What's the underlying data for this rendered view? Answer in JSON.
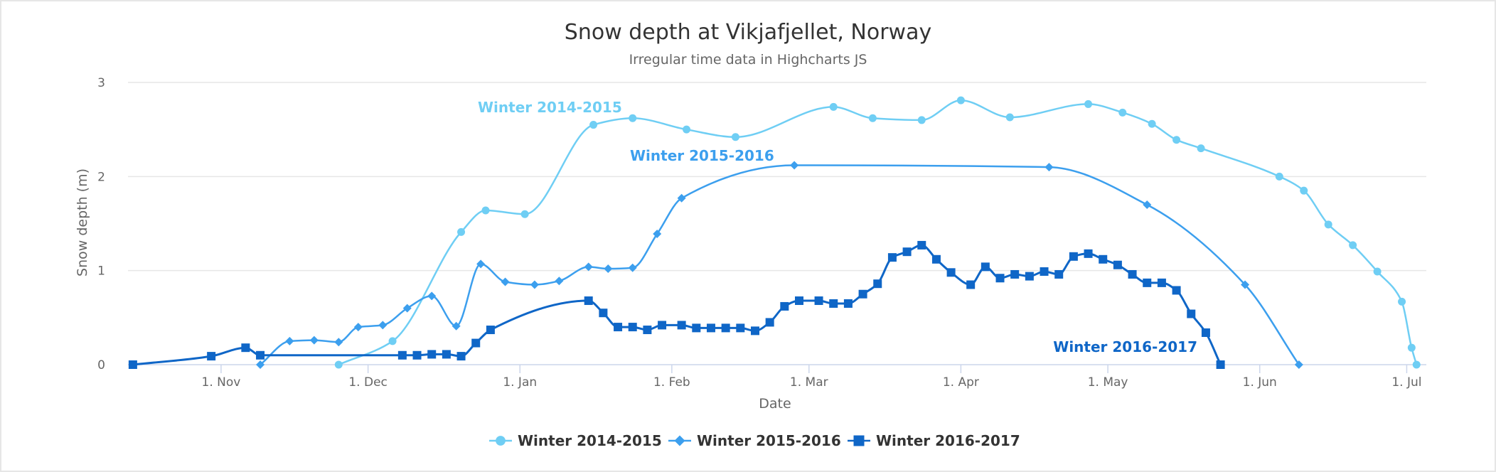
{
  "chart_data": {
    "type": "line",
    "title": "Snow depth at Vikjafjellet, Norway",
    "subtitle": "Irregular time data in Highcharts JS",
    "xlabel": "Date",
    "ylabel": "Snow depth (m)",
    "x_axis_type": "datetime",
    "x_range": [
      "1970-10-13",
      "1971-07-05"
    ],
    "ylim": [
      0,
      3
    ],
    "y_ticks": [
      0,
      1,
      2,
      3
    ],
    "x_ticks": [
      {
        "date": "1970-11-01",
        "label": "1. Nov"
      },
      {
        "date": "1970-12-01",
        "label": "1. Dec"
      },
      {
        "date": "1971-01-01",
        "label": "1. Jan"
      },
      {
        "date": "1971-02-01",
        "label": "1. Feb"
      },
      {
        "date": "1971-03-01",
        "label": "1. Mar"
      },
      {
        "date": "1971-04-01",
        "label": "1. Apr"
      },
      {
        "date": "1971-05-01",
        "label": "1. May"
      },
      {
        "date": "1971-06-01",
        "label": "1. Jun"
      },
      {
        "date": "1971-07-01",
        "label": "1. Jul"
      }
    ],
    "grid": true,
    "legend_position": "bottom-center",
    "series": [
      {
        "name": "Winter 2014-2015",
        "color": "#6fcef4",
        "marker": "circle",
        "points": [
          [
            "1970-11-25",
            0
          ],
          [
            "1970-12-06",
            0.25
          ],
          [
            "1970-12-20",
            1.41
          ],
          [
            "1970-12-25",
            1.64
          ],
          [
            "1971-01-02",
            1.6
          ],
          [
            "1971-01-16",
            2.55
          ],
          [
            "1971-01-24",
            2.62
          ],
          [
            "1971-02-04",
            2.5
          ],
          [
            "1971-02-14",
            2.42
          ],
          [
            "1971-03-06",
            2.74
          ],
          [
            "1971-03-14",
            2.62
          ],
          [
            "1971-03-24",
            2.6
          ],
          [
            "1971-04-01",
            2.81
          ],
          [
            "1971-04-11",
            2.63
          ],
          [
            "1971-04-27",
            2.77
          ],
          [
            "1971-05-04",
            2.68
          ],
          [
            "1971-05-10",
            2.56
          ],
          [
            "1971-05-15",
            2.39
          ],
          [
            "1971-05-20",
            2.3
          ],
          [
            "1971-06-05",
            2.0
          ],
          [
            "1971-06-10",
            1.85
          ],
          [
            "1971-06-15",
            1.49
          ],
          [
            "1971-06-20",
            1.27
          ],
          [
            "1971-06-25",
            0.99
          ],
          [
            "1971-06-30",
            0.67
          ],
          [
            "1971-07-02",
            0.18
          ],
          [
            "1971-07-03",
            0
          ]
        ]
      },
      {
        "name": "Winter 2015-2016",
        "color": "#3c9fee",
        "marker": "diamond",
        "points": [
          [
            "1970-11-09",
            0
          ],
          [
            "1970-11-15",
            0.25
          ],
          [
            "1970-11-20",
            0.26
          ],
          [
            "1970-11-25",
            0.24
          ],
          [
            "1970-11-29",
            0.4
          ],
          [
            "1970-12-04",
            0.42
          ],
          [
            "1970-12-09",
            0.6
          ],
          [
            "1970-12-14",
            0.73
          ],
          [
            "1970-12-19",
            0.41
          ],
          [
            "1970-12-24",
            1.07
          ],
          [
            "1970-12-29",
            0.88
          ],
          [
            "1971-01-04",
            0.85
          ],
          [
            "1971-01-09",
            0.89
          ],
          [
            "1971-01-15",
            1.04
          ],
          [
            "1971-01-19",
            1.02
          ],
          [
            "1971-01-24",
            1.03
          ],
          [
            "1971-01-29",
            1.39
          ],
          [
            "1971-02-03",
            1.77
          ],
          [
            "1971-02-26",
            2.12
          ],
          [
            "1971-04-19",
            2.1
          ],
          [
            "1971-05-09",
            1.7
          ],
          [
            "1971-05-29",
            0.85
          ],
          [
            "1971-06-09",
            0
          ]
        ]
      },
      {
        "name": "Winter 2016-2017",
        "color": "#0f66c7",
        "marker": "square",
        "points": [
          [
            "1970-10-14",
            0
          ],
          [
            "1970-10-30",
            0.09
          ],
          [
            "1970-11-06",
            0.18
          ],
          [
            "1970-11-09",
            0.1
          ],
          [
            "1970-12-08",
            0.1
          ],
          [
            "1970-12-11",
            0.1
          ],
          [
            "1970-12-14",
            0.11
          ],
          [
            "1970-12-17",
            0.11
          ],
          [
            "1970-12-20",
            0.09
          ],
          [
            "1970-12-23",
            0.23
          ],
          [
            "1970-12-26",
            0.37
          ],
          [
            "1971-01-15",
            0.68
          ],
          [
            "1971-01-18",
            0.55
          ],
          [
            "1971-01-21",
            0.4
          ],
          [
            "1971-01-24",
            0.4
          ],
          [
            "1971-01-27",
            0.37
          ],
          [
            "1971-01-30",
            0.42
          ],
          [
            "1971-02-03",
            0.42
          ],
          [
            "1971-02-06",
            0.39
          ],
          [
            "1971-02-09",
            0.39
          ],
          [
            "1971-02-12",
            0.39
          ],
          [
            "1971-02-15",
            0.39
          ],
          [
            "1971-02-18",
            0.36
          ],
          [
            "1971-02-21",
            0.45
          ],
          [
            "1971-02-24",
            0.62
          ],
          [
            "1971-02-27",
            0.68
          ],
          [
            "1971-03-03",
            0.68
          ],
          [
            "1971-03-06",
            0.65
          ],
          [
            "1971-03-09",
            0.65
          ],
          [
            "1971-03-12",
            0.75
          ],
          [
            "1971-03-15",
            0.86
          ],
          [
            "1971-03-18",
            1.14
          ],
          [
            "1971-03-21",
            1.2
          ],
          [
            "1971-03-24",
            1.27
          ],
          [
            "1971-03-27",
            1.12
          ],
          [
            "1971-03-30",
            0.98
          ],
          [
            "1971-04-03",
            0.85
          ],
          [
            "1971-04-06",
            1.04
          ],
          [
            "1971-04-09",
            0.92
          ],
          [
            "1971-04-12",
            0.96
          ],
          [
            "1971-04-15",
            0.94
          ],
          [
            "1971-04-18",
            0.99
          ],
          [
            "1971-04-21",
            0.96
          ],
          [
            "1971-04-24",
            1.15
          ],
          [
            "1971-04-27",
            1.18
          ],
          [
            "1971-04-30",
            1.12
          ],
          [
            "1971-05-03",
            1.06
          ],
          [
            "1971-05-06",
            0.96
          ],
          [
            "1971-05-09",
            0.87
          ],
          [
            "1971-05-12",
            0.87
          ],
          [
            "1971-05-15",
            0.79
          ],
          [
            "1971-05-18",
            0.54
          ],
          [
            "1971-05-21",
            0.34
          ],
          [
            "1971-05-24",
            0
          ]
        ]
      }
    ],
    "annotations": [
      {
        "text": "Winter 2014-2015",
        "series": 0
      },
      {
        "text": "Winter 2015-2016",
        "series": 1
      },
      {
        "text": "Winter 2016-2017",
        "series": 2
      }
    ]
  }
}
